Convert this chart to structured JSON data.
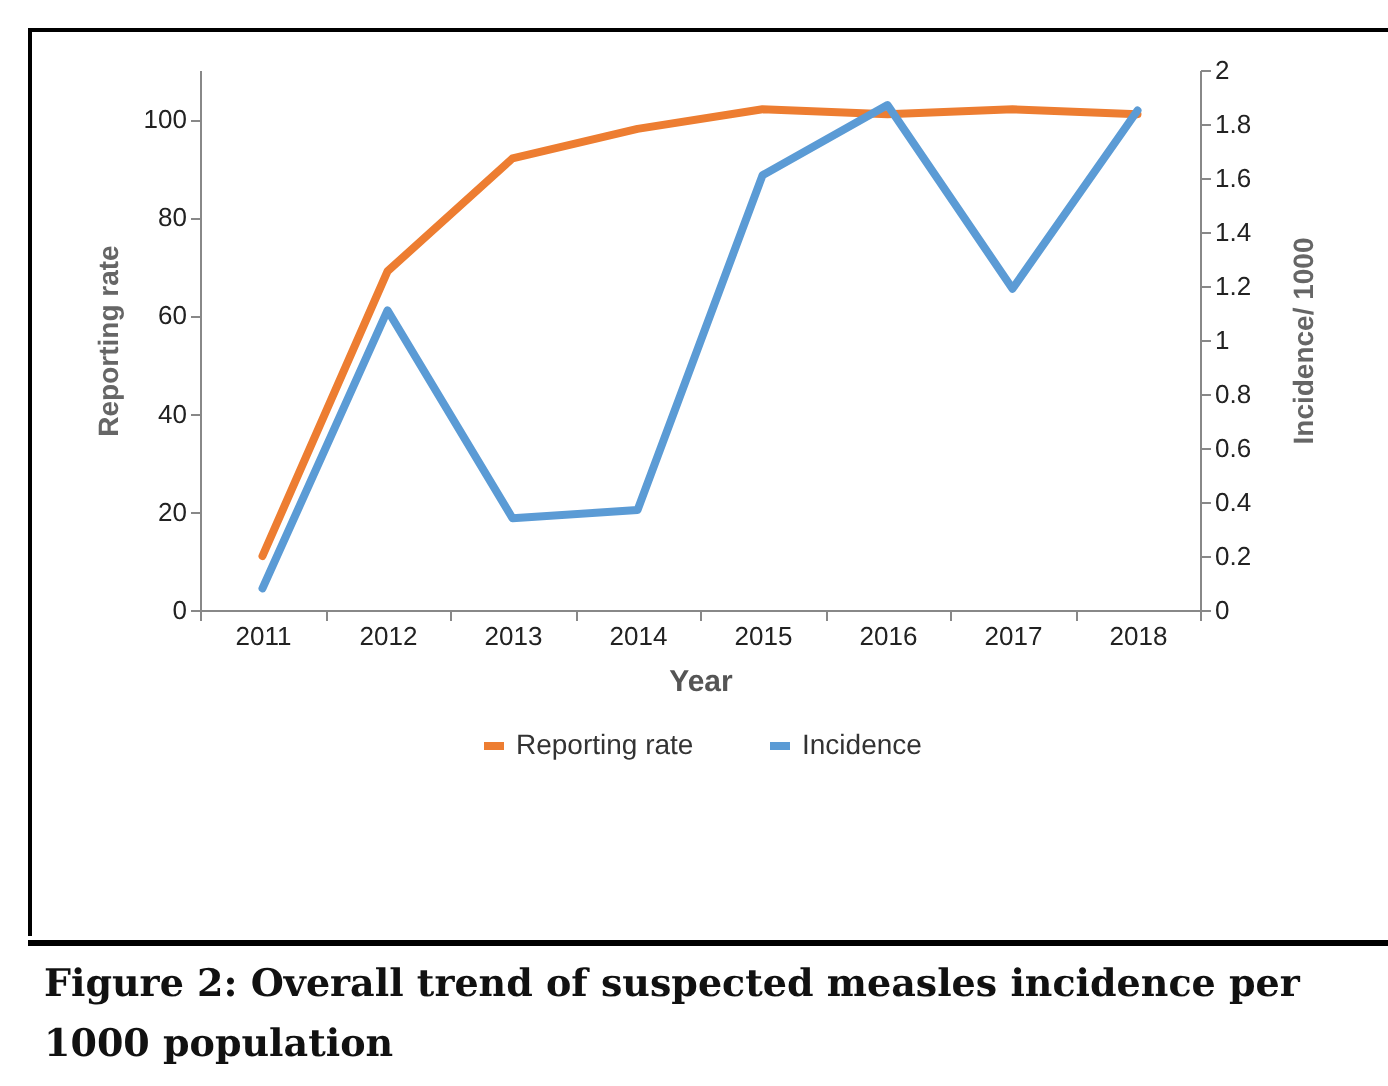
{
  "chart_data": {
    "type": "line",
    "title": "Figure 2: Overall trend of suspected measles incidence per 1000 population",
    "xlabel": "Year",
    "ylabel": "Reporting rate",
    "y2label": "Incidence/ 1000",
    "categories": [
      "2011",
      "2012",
      "2013",
      "2014",
      "2015",
      "2016",
      "2017",
      "2018"
    ],
    "series": [
      {
        "name": "Reporting rate",
        "color": "#ed7d31",
        "values": [
          11,
          69,
          92,
          98,
          102,
          101,
          102,
          101
        ]
      },
      {
        "name": "Incidence",
        "color": "#5b9bd5",
        "axis": "y2",
        "values": [
          0.08,
          1.11,
          0.34,
          0.37,
          1.61,
          1.87,
          1.19,
          1.85
        ]
      }
    ],
    "ylim": [
      0,
      110
    ],
    "yticks": [
      0,
      20,
      40,
      60,
      80,
      100
    ],
    "y2lim": [
      0,
      2
    ],
    "y2ticks": [
      0,
      0.2,
      0.4,
      0.6,
      0.8,
      1,
      1.2,
      1.4,
      1.6,
      1.8,
      2
    ],
    "grid": false,
    "legend": "bottom",
    "marker": "none",
    "line_style": "solid"
  }
}
